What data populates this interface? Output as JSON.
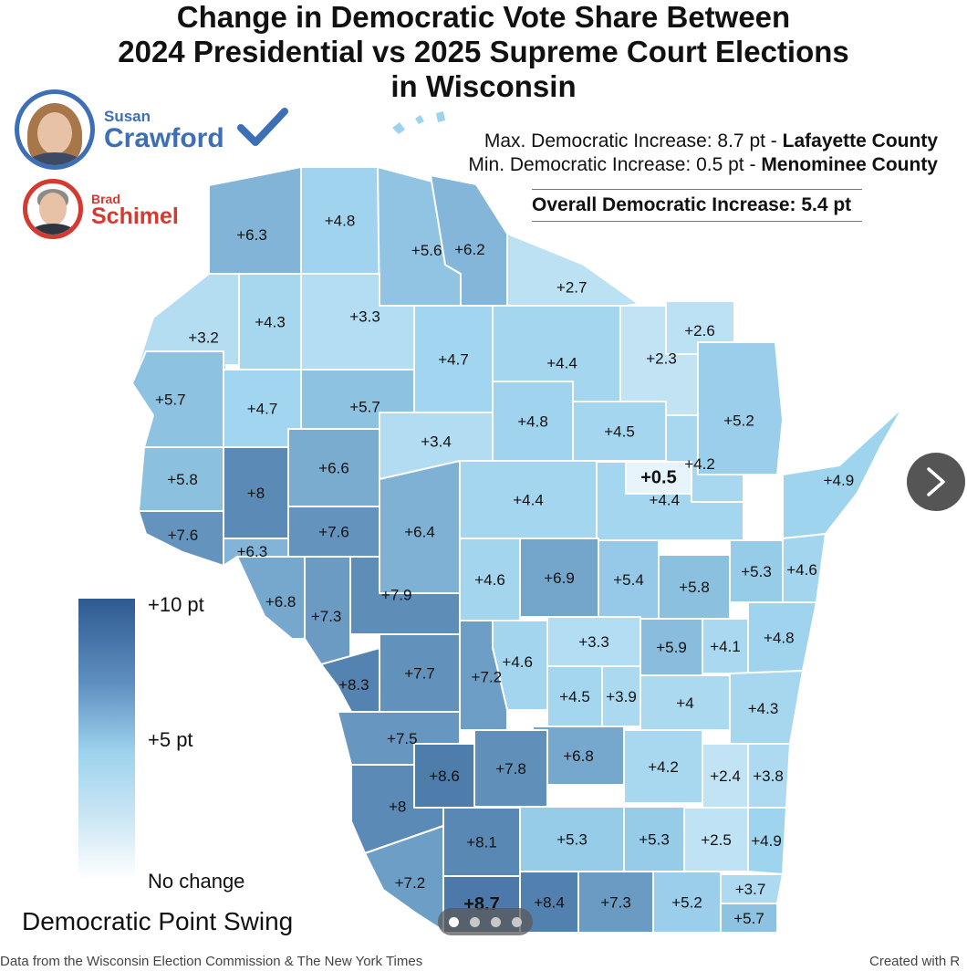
{
  "title": {
    "line1": "Change in Democratic Vote Share Between",
    "line2": "2024 Presidential vs 2025 Supreme Court Elections",
    "line3": "in Wisconsin"
  },
  "candidates": [
    {
      "first": "Susan",
      "last": "Crawford",
      "color": "#3c6fb6",
      "winner": true
    },
    {
      "first": "Brad",
      "last": "Schimel",
      "color": "#d33a32",
      "winner": false
    }
  ],
  "stats": {
    "max_prefix": "Max. Democratic Increase: 8.7 pt - ",
    "max_county": "Lafayette County",
    "min_prefix": "Min. Democratic Increase: 0.5 pt - ",
    "min_county": "Menominee County",
    "overall": "Overall Democratic Increase: 5.4 pt"
  },
  "legend": {
    "high": "+10 pt",
    "mid": "+5 pt",
    "low": "No change",
    "title": "Democratic Point Swing"
  },
  "counties": [
    {
      "label": "+6.3",
      "value": 6.3
    },
    {
      "label": "+4.8",
      "value": 4.8
    },
    {
      "label": "+5.6",
      "value": 5.6
    },
    {
      "label": "+6.2",
      "value": 6.2
    },
    {
      "label": "+2.7",
      "value": 2.7
    },
    {
      "label": "+3.2",
      "value": 3.2
    },
    {
      "label": "+4.3",
      "value": 4.3
    },
    {
      "label": "+3.3",
      "value": 3.3
    },
    {
      "label": "+4.7",
      "value": 4.7
    },
    {
      "label": "+4.4",
      "value": 4.4
    },
    {
      "label": "+2.6",
      "value": 2.6
    },
    {
      "label": "+2.3",
      "value": 2.3
    },
    {
      "label": "+5.7",
      "value": 5.7
    },
    {
      "label": "+4.7",
      "value": 4.7
    },
    {
      "label": "+5.7",
      "value": 5.7
    },
    {
      "label": "+5.2",
      "value": 5.2
    },
    {
      "label": "+4.8",
      "value": 4.8
    },
    {
      "label": "+4.5",
      "value": 4.5
    },
    {
      "label": "+3.4",
      "value": 3.4
    },
    {
      "label": "+5.8",
      "value": 5.8
    },
    {
      "label": "+8",
      "value": 8.0
    },
    {
      "label": "+6.6",
      "value": 6.6
    },
    {
      "label": "+0.5",
      "value": 0.5
    },
    {
      "label": "+4.2",
      "value": 4.2
    },
    {
      "label": "+4.4",
      "value": 4.4
    },
    {
      "label": "+4.9",
      "value": 4.9
    },
    {
      "label": "+7.6",
      "value": 7.6
    },
    {
      "label": "+7.6",
      "value": 7.6
    },
    {
      "label": "+6.4",
      "value": 6.4
    },
    {
      "label": "+4.4",
      "value": 4.4
    },
    {
      "label": "+6.3",
      "value": 6.3
    },
    {
      "label": "+4.6",
      "value": 4.6
    },
    {
      "label": "+6.9",
      "value": 6.9
    },
    {
      "label": "+5.4",
      "value": 5.4
    },
    {
      "label": "+5.8",
      "value": 5.8
    },
    {
      "label": "+5.3",
      "value": 5.3
    },
    {
      "label": "+4.6",
      "value": 4.6
    },
    {
      "label": "+6.8",
      "value": 6.8
    },
    {
      "label": "+7.3",
      "value": 7.3
    },
    {
      "label": "+7.9",
      "value": 7.9
    },
    {
      "label": "+3.3",
      "value": 3.3
    },
    {
      "label": "+4.6",
      "value": 4.6
    },
    {
      "label": "+5.9",
      "value": 5.9
    },
    {
      "label": "+4.1",
      "value": 4.1
    },
    {
      "label": "+4.8",
      "value": 4.8
    },
    {
      "label": "+8.3",
      "value": 8.3
    },
    {
      "label": "+7.7",
      "value": 7.7
    },
    {
      "label": "+7.2",
      "value": 7.2
    },
    {
      "label": "+4.5",
      "value": 4.5
    },
    {
      "label": "+3.9",
      "value": 3.9
    },
    {
      "label": "+4",
      "value": 4.0
    },
    {
      "label": "+4.3",
      "value": 4.3
    },
    {
      "label": "+7.5",
      "value": 7.5
    },
    {
      "label": "+6.8",
      "value": 6.8
    },
    {
      "label": "+4.2",
      "value": 4.2
    },
    {
      "label": "+3.8",
      "value": 3.8
    },
    {
      "label": "+8.6",
      "value": 8.6
    },
    {
      "label": "+7.8",
      "value": 7.8
    },
    {
      "label": "+2.4",
      "value": 2.4
    },
    {
      "label": "+8",
      "value": 8.0
    },
    {
      "label": "+8.1",
      "value": 8.1
    },
    {
      "label": "+5.3",
      "value": 5.3
    },
    {
      "label": "+5.3",
      "value": 5.3
    },
    {
      "label": "+2.5",
      "value": 2.5
    },
    {
      "label": "+4.9",
      "value": 4.9
    },
    {
      "label": "+7.2",
      "value": 7.2
    },
    {
      "label": "+8.7",
      "value": 8.7
    },
    {
      "label": "+8.4",
      "value": 8.4
    },
    {
      "label": "+7.3",
      "value": 7.3
    },
    {
      "label": "+5.2",
      "value": 5.2
    },
    {
      "label": "+3.7",
      "value": 3.7
    },
    {
      "label": "+5.7",
      "value": 5.7
    }
  ],
  "footer": {
    "source": "Data from the Wisconsin Election Commission & The New York Times",
    "credit": "Created with R"
  },
  "carousel": {
    "pages": 4,
    "active": 1
  },
  "colors": {
    "low": "#ffffff",
    "mid": "#9ed3ee",
    "high": "#2f5a91",
    "border": "#ffffff"
  }
}
